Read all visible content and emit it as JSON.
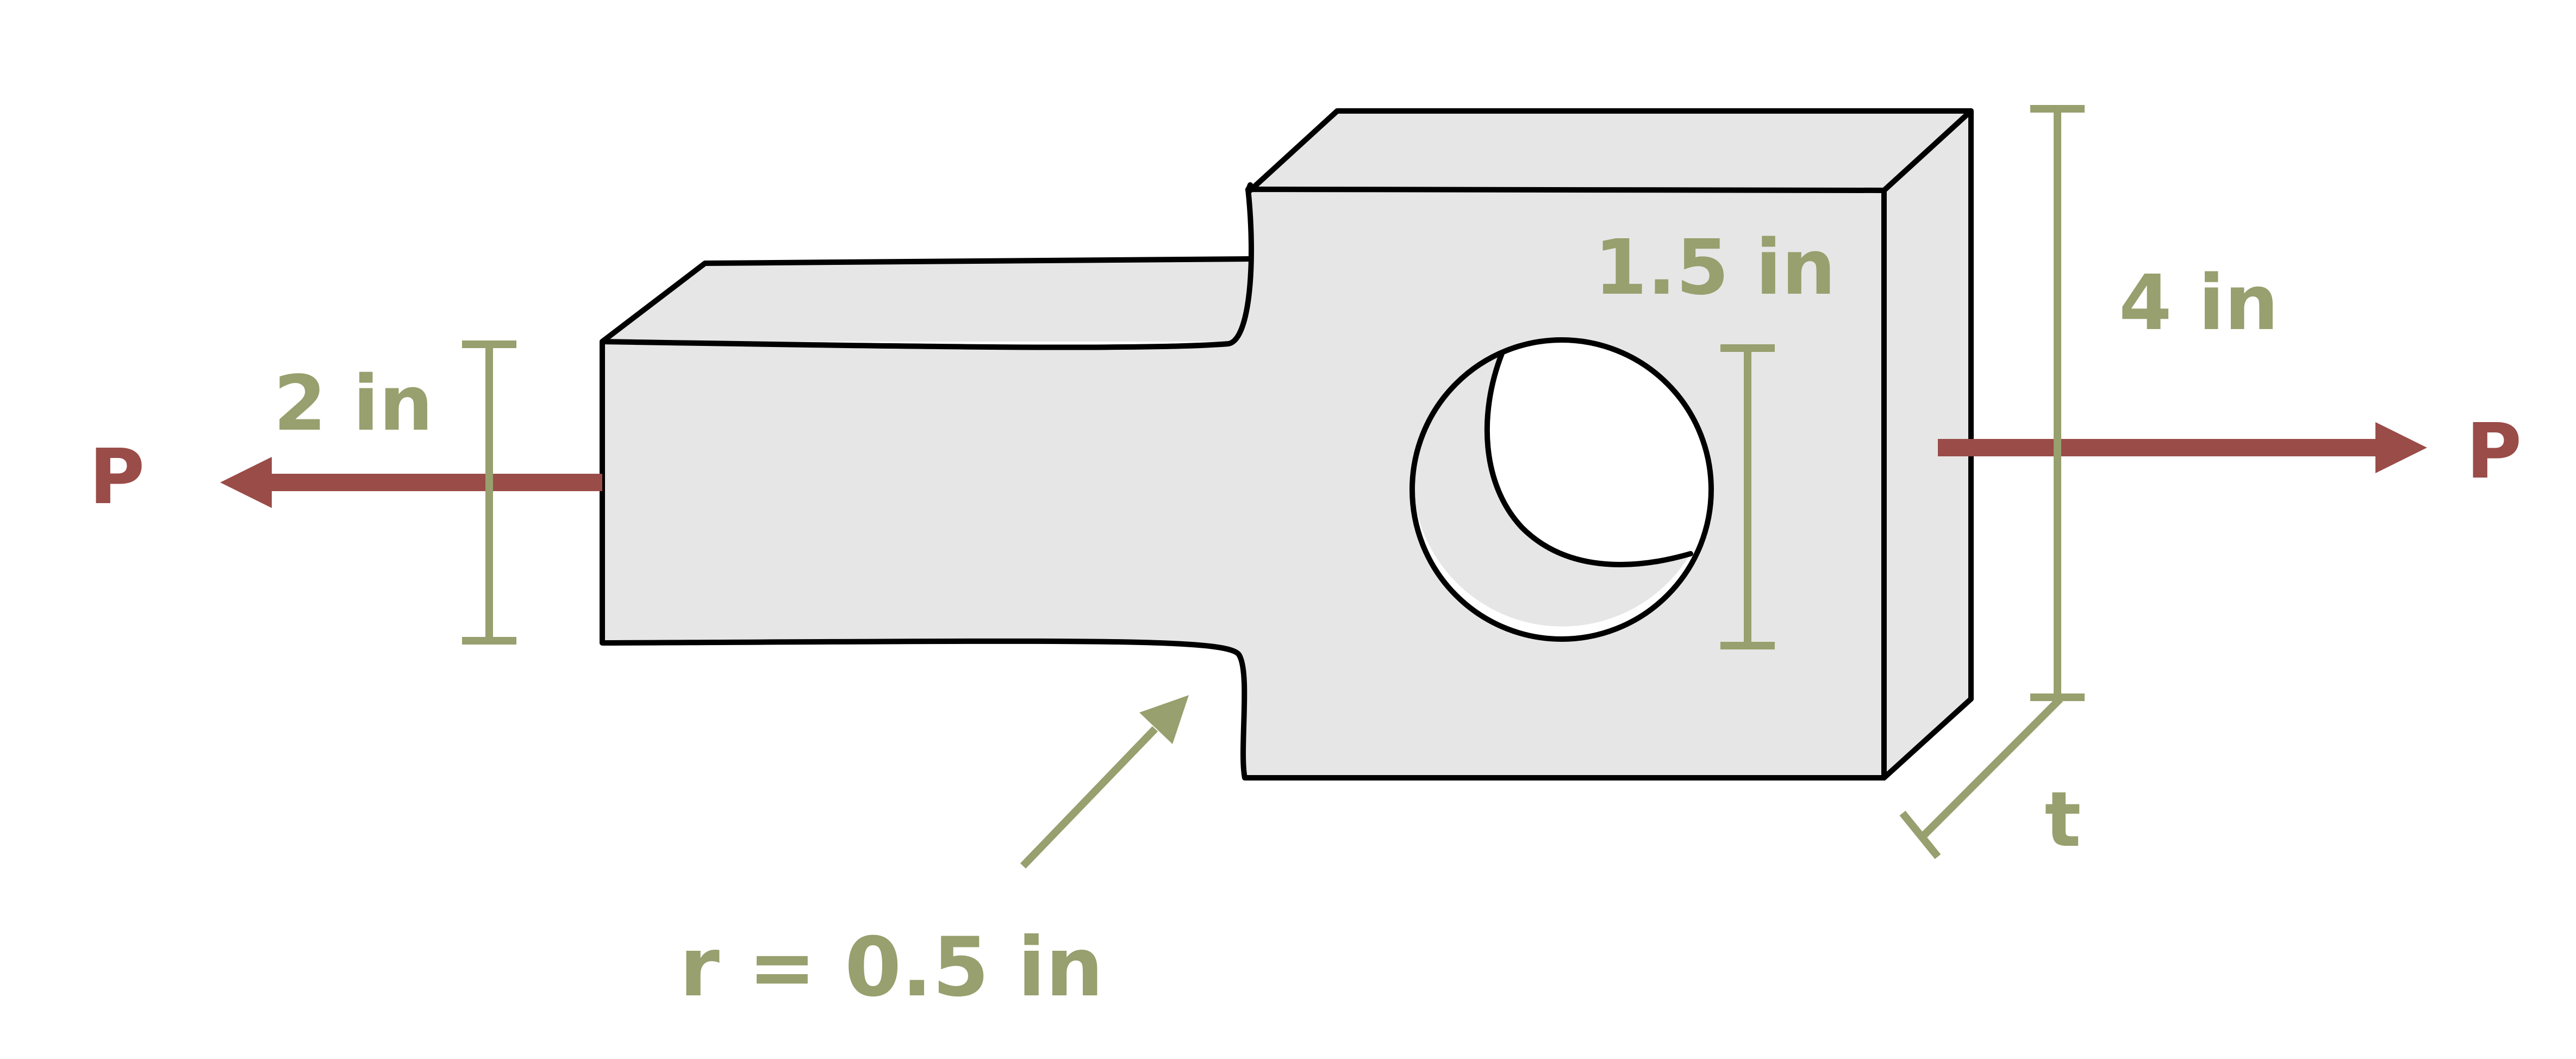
{
  "colors": {
    "part_fill": "#e6e6e6",
    "part_side": "#e6e6e6",
    "hole_fill": "#ffffff",
    "outline": "#000000",
    "dimension": "#97a06e",
    "force": "#9a4c48",
    "background": "#ffffff"
  },
  "labels": {
    "load_left": "P",
    "load_right": "P",
    "width_narrow": "2 in",
    "hole_diameter": "1.5 in",
    "width_wide": "4 in",
    "thickness": "t",
    "fillet_radius": "r = 0.5 in"
  }
}
